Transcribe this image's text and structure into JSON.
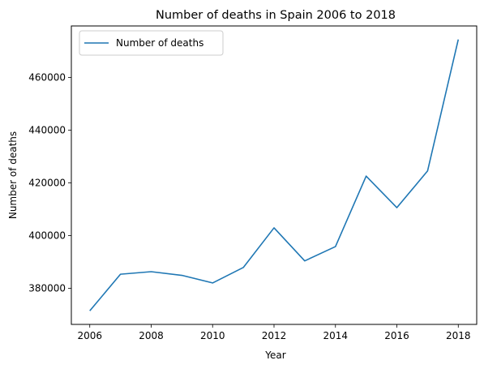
{
  "chart_data": {
    "type": "line",
    "title": "Number of deaths in Spain 2006 to 2018",
    "xlabel": "Year",
    "ylabel": "Number of deaths",
    "x": [
      2006,
      2007,
      2008,
      2009,
      2010,
      2011,
      2012,
      2013,
      2014,
      2015,
      2016,
      2017,
      2018
    ],
    "series": [
      {
        "name": "Number of deaths",
        "color": "#1f77b4",
        "values": [
          371478,
          385361,
          386324,
          384933,
          382047,
          387911,
          402950,
          390419,
          395830,
          422568,
          410611,
          424523,
          474360
        ]
      }
    ],
    "xticks": [
      2006,
      2008,
      2010,
      2012,
      2014,
      2016,
      2018
    ],
    "xtick_labels": [
      "2006",
      "2008",
      "2010",
      "2012",
      "2014",
      "2016",
      "2018"
    ],
    "yticks": [
      380000,
      400000,
      420000,
      440000,
      460000
    ],
    "ytick_labels": [
      "380000",
      "400000",
      "420000",
      "440000",
      "460000"
    ],
    "xlim": [
      2005.4,
      2018.6
    ],
    "ylim": [
      366333,
      479505
    ],
    "grid": false,
    "legend_position": "top-left"
  }
}
